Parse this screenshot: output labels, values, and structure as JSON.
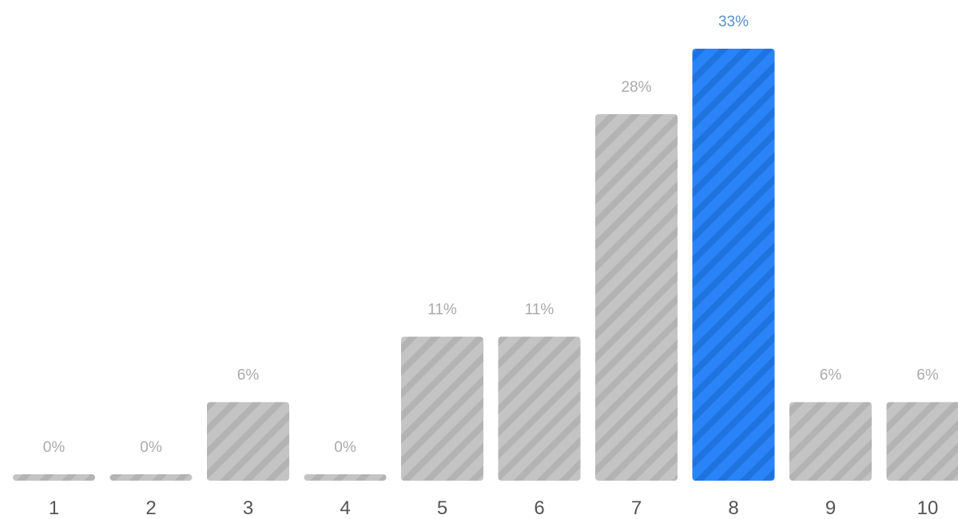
{
  "chart_data": {
    "type": "bar",
    "categories": [
      "1",
      "2",
      "3",
      "4",
      "5",
      "6",
      "7",
      "8",
      "9",
      "10"
    ],
    "values": [
      0,
      0,
      6,
      0,
      11,
      11,
      28,
      33,
      6,
      6
    ],
    "value_labels": [
      "0%",
      "0%",
      "6%",
      "0%",
      "11%",
      "11%",
      "28%",
      "33%",
      "6%",
      "6%"
    ],
    "highlight_index": 7,
    "ylim": [
      0,
      33
    ],
    "grid": false,
    "legend": "none",
    "title": "",
    "xlabel": "",
    "ylabel": ""
  },
  "colors": {
    "bar_default": "#c4c4c4",
    "bar_default_stripe": "#b3b3b3",
    "bar_highlight": "#2a84f7",
    "bar_highlight_stripe": "#1f73de",
    "label_default": "#aaaaaa",
    "label_highlight": "#5b8fc7",
    "category_label": "#555555"
  }
}
